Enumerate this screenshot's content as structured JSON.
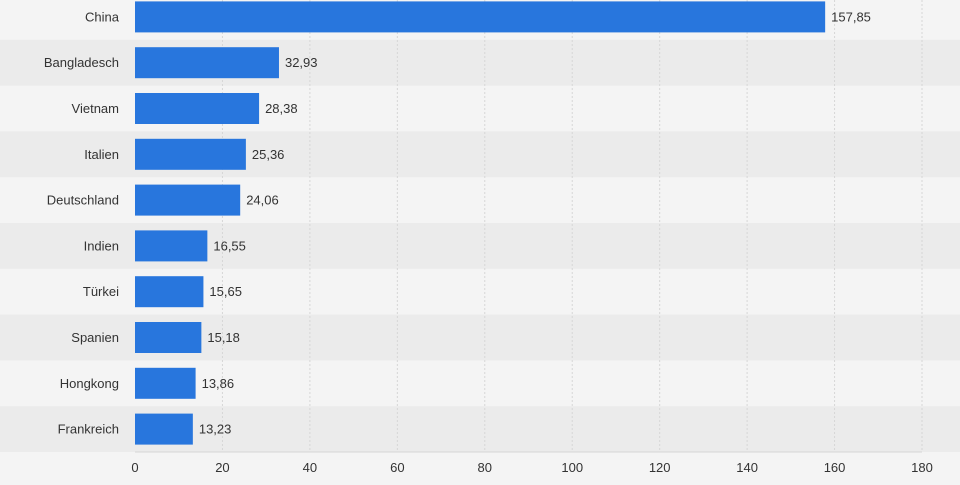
{
  "chart_data": {
    "type": "bar",
    "orientation": "horizontal",
    "categories": [
      "China",
      "Bangladesch",
      "Vietnam",
      "Italien",
      "Deutschland",
      "Indien",
      "Türkei",
      "Spanien",
      "Hongkong",
      "Frankreich"
    ],
    "values": [
      157.85,
      32.93,
      28.38,
      25.36,
      24.06,
      16.55,
      15.65,
      15.18,
      13.86,
      13.23
    ],
    "value_labels": [
      "157,85",
      "32,93",
      "28,38",
      "25,36",
      "24,06",
      "16,55",
      "15,65",
      "15,18",
      "13,86",
      "13,23"
    ],
    "x_ticks": [
      "0",
      "20",
      "40",
      "60",
      "80",
      "100",
      "120",
      "140",
      "160",
      "180"
    ],
    "xlim": [
      0,
      180
    ],
    "title": "",
    "xlabel": "",
    "ylabel": "",
    "grid": true,
    "legend": "none",
    "colors": {
      "bar": "#2876dd",
      "background": "#f4f4f4",
      "row_alt": "#ebebeb",
      "grid": "#d6d6d6",
      "label": "#333333"
    }
  }
}
